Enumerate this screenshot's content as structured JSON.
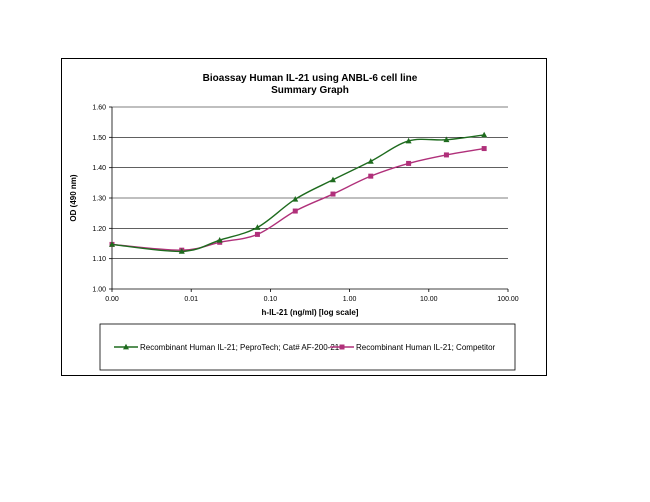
{
  "chart_data": {
    "type": "line",
    "title": "Bioassay Human IL-21 using ANBL-6 cell line",
    "subtitle": "Summary Graph",
    "xlabel": "h-IL-21 (ng/ml) [log scale]",
    "ylabel": "OD (490 nm)",
    "x_scale": "log",
    "xlim": [
      0.001,
      100
    ],
    "ylim": [
      1.0,
      1.6
    ],
    "x_tick_values": [
      0.001,
      0.01,
      0.1,
      1,
      10,
      100
    ],
    "x_tick_labels": [
      "0.00",
      "0.01",
      "0.10",
      "1.00",
      "10.00",
      "100.00"
    ],
    "y_tick_values": [
      1.0,
      1.1,
      1.2,
      1.3,
      1.4,
      1.5,
      1.6
    ],
    "y_tick_labels": [
      "1.00",
      "1.10",
      "1.20",
      "1.30",
      "1.40",
      "1.50",
      "1.60"
    ],
    "grid": "horizontal",
    "legend_position": "bottom",
    "series": [
      {
        "name": "Recombinant Human IL-21; PeproTech; Cat# AF-200-21",
        "color": "#1e6b1e",
        "marker": "triangle",
        "x": [
          0.001,
          0.0076,
          0.0229,
          0.0686,
          0.206,
          0.617,
          1.85,
          5.56,
          16.7,
          50.0
        ],
        "y": [
          1.147,
          1.124,
          1.161,
          1.203,
          1.296,
          1.36,
          1.421,
          1.488,
          1.492,
          1.508
        ]
      },
      {
        "name": "Recombinant Human IL-21; Competitor",
        "color": "#b0307a",
        "marker": "square",
        "x": [
          0.001,
          0.0076,
          0.0229,
          0.0686,
          0.206,
          0.617,
          1.85,
          5.56,
          16.7,
          50.0
        ],
        "y": [
          1.147,
          1.128,
          1.154,
          1.18,
          1.257,
          1.313,
          1.372,
          1.414,
          1.442,
          1.463
        ]
      }
    ]
  }
}
